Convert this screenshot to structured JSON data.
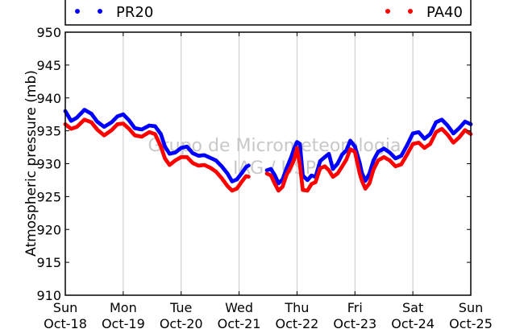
{
  "chart_data": {
    "type": "scatter",
    "title": "",
    "xlabel": "",
    "ylabel": "Atmospheric pressure (mb)",
    "ylim": [
      910,
      950
    ],
    "y_ticks": [
      910,
      915,
      920,
      925,
      930,
      935,
      940,
      945,
      950
    ],
    "xlim": [
      0,
      7
    ],
    "x_unit": "days",
    "x_ticks": [
      {
        "day": "Sun",
        "date": "Oct-18"
      },
      {
        "day": "Mon",
        "date": "Oct-19"
      },
      {
        "day": "Tue",
        "date": "Oct-20"
      },
      {
        "day": "Wed",
        "date": "Oct-21"
      },
      {
        "day": "Thu",
        "date": "Oct-22"
      },
      {
        "day": "Fri",
        "date": "Oct-23"
      },
      {
        "day": "Sat",
        "date": "Oct-24"
      },
      {
        "day": "Sun",
        "date": "Oct-25"
      }
    ],
    "grid": "vertical",
    "legend_placement": "top",
    "watermark": [
      "Grupo de Micrometeorologia",
      "IAG / USP"
    ],
    "series": [
      {
        "name": "PR20",
        "color": "#0000ff",
        "points": [
          [
            0.0,
            938.0
          ],
          [
            0.1,
            936.5
          ],
          [
            0.2,
            937.0
          ],
          [
            0.33,
            938.2
          ],
          [
            0.45,
            937.6
          ],
          [
            0.55,
            936.4
          ],
          [
            0.67,
            935.6
          ],
          [
            0.8,
            936.3
          ],
          [
            0.9,
            937.2
          ],
          [
            1.0,
            937.5
          ],
          [
            1.1,
            936.6
          ],
          [
            1.2,
            935.4
          ],
          [
            1.32,
            935.2
          ],
          [
            1.45,
            935.8
          ],
          [
            1.55,
            935.7
          ],
          [
            1.65,
            934.5
          ],
          [
            1.72,
            932.6
          ],
          [
            1.8,
            931.5
          ],
          [
            1.9,
            931.7
          ],
          [
            2.0,
            932.4
          ],
          [
            2.1,
            932.6
          ],
          [
            2.2,
            931.6
          ],
          [
            2.3,
            931.2
          ],
          [
            2.4,
            931.3
          ],
          [
            2.5,
            930.9
          ],
          [
            2.6,
            930.5
          ],
          [
            2.7,
            929.6
          ],
          [
            2.8,
            928.5
          ],
          [
            2.88,
            927.3
          ],
          [
            2.96,
            927.6
          ],
          [
            3.05,
            928.6
          ],
          [
            3.12,
            929.5
          ],
          [
            3.18,
            929.8
          ],
          [
            null,
            null
          ],
          [
            3.48,
            929.0
          ],
          [
            3.55,
            929.2
          ],
          [
            3.62,
            928.2
          ],
          [
            3.68,
            927.0
          ],
          [
            3.75,
            927.6
          ],
          [
            3.82,
            929.3
          ],
          [
            3.9,
            931.0
          ],
          [
            3.95,
            932.3
          ],
          [
            4.0,
            933.3
          ],
          [
            4.05,
            933.0
          ],
          [
            4.1,
            928.2
          ],
          [
            4.18,
            927.5
          ],
          [
            4.25,
            928.2
          ],
          [
            4.32,
            928.0
          ],
          [
            4.4,
            930.4
          ],
          [
            4.48,
            931.0
          ],
          [
            4.55,
            931.5
          ],
          [
            4.62,
            929.2
          ],
          [
            4.7,
            930.0
          ],
          [
            4.78,
            931.4
          ],
          [
            4.85,
            932.0
          ],
          [
            4.92,
            933.5
          ],
          [
            5.0,
            932.6
          ],
          [
            5.08,
            930.2
          ],
          [
            5.12,
            928.6
          ],
          [
            5.18,
            927.4
          ],
          [
            5.25,
            928.5
          ],
          [
            5.32,
            930.5
          ],
          [
            5.4,
            931.8
          ],
          [
            5.5,
            932.3
          ],
          [
            5.6,
            931.7
          ],
          [
            5.7,
            930.8
          ],
          [
            5.8,
            931.2
          ],
          [
            5.9,
            932.8
          ],
          [
            6.0,
            934.6
          ],
          [
            6.1,
            934.8
          ],
          [
            6.2,
            933.8
          ],
          [
            6.3,
            934.5
          ],
          [
            6.4,
            936.3
          ],
          [
            6.5,
            936.7
          ],
          [
            6.6,
            935.8
          ],
          [
            6.7,
            934.6
          ],
          [
            6.8,
            935.4
          ],
          [
            6.9,
            936.4
          ],
          [
            7.0,
            936.0
          ]
        ]
      },
      {
        "name": "PA40",
        "color": "#ff0000",
        "points": [
          [
            0.0,
            936.0
          ],
          [
            0.1,
            935.3
          ],
          [
            0.2,
            935.6
          ],
          [
            0.33,
            936.7
          ],
          [
            0.45,
            936.3
          ],
          [
            0.55,
            935.2
          ],
          [
            0.67,
            934.3
          ],
          [
            0.8,
            935.1
          ],
          [
            0.9,
            936.0
          ],
          [
            1.0,
            936.1
          ],
          [
            1.1,
            935.3
          ],
          [
            1.2,
            934.3
          ],
          [
            1.32,
            934.1
          ],
          [
            1.45,
            934.8
          ],
          [
            1.55,
            934.5
          ],
          [
            1.65,
            932.6
          ],
          [
            1.72,
            930.8
          ],
          [
            1.8,
            929.8
          ],
          [
            1.9,
            930.5
          ],
          [
            2.0,
            931.0
          ],
          [
            2.1,
            931.0
          ],
          [
            2.2,
            930.1
          ],
          [
            2.3,
            929.7
          ],
          [
            2.4,
            929.8
          ],
          [
            2.5,
            929.4
          ],
          [
            2.6,
            928.8
          ],
          [
            2.7,
            927.8
          ],
          [
            2.8,
            926.6
          ],
          [
            2.88,
            925.9
          ],
          [
            2.96,
            926.2
          ],
          [
            3.05,
            927.3
          ],
          [
            3.12,
            928.1
          ],
          [
            3.18,
            928.0
          ],
          [
            null,
            null
          ],
          [
            3.48,
            928.5
          ],
          [
            3.55,
            928.2
          ],
          [
            3.62,
            926.9
          ],
          [
            3.68,
            925.9
          ],
          [
            3.75,
            926.5
          ],
          [
            3.82,
            928.3
          ],
          [
            3.9,
            929.6
          ],
          [
            3.95,
            930.6
          ],
          [
            4.0,
            932.4
          ],
          [
            4.05,
            929.8
          ],
          [
            4.1,
            926.0
          ],
          [
            4.18,
            925.9
          ],
          [
            4.25,
            926.9
          ],
          [
            4.32,
            927.2
          ],
          [
            4.4,
            929.3
          ],
          [
            4.48,
            929.6
          ],
          [
            4.55,
            929.0
          ],
          [
            4.62,
            928.0
          ],
          [
            4.7,
            928.5
          ],
          [
            4.78,
            929.6
          ],
          [
            4.85,
            930.6
          ],
          [
            4.92,
            932.2
          ],
          [
            5.0,
            931.8
          ],
          [
            5.08,
            928.6
          ],
          [
            5.12,
            927.4
          ],
          [
            5.18,
            926.2
          ],
          [
            5.25,
            927.0
          ],
          [
            5.32,
            929.1
          ],
          [
            5.4,
            930.5
          ],
          [
            5.5,
            931.0
          ],
          [
            5.6,
            930.5
          ],
          [
            5.7,
            929.6
          ],
          [
            5.8,
            929.9
          ],
          [
            5.9,
            931.4
          ],
          [
            6.0,
            933.0
          ],
          [
            6.1,
            933.2
          ],
          [
            6.2,
            932.4
          ],
          [
            6.3,
            933.0
          ],
          [
            6.4,
            934.8
          ],
          [
            6.5,
            935.3
          ],
          [
            6.6,
            934.4
          ],
          [
            6.7,
            933.2
          ],
          [
            6.8,
            934.0
          ],
          [
            6.9,
            935.1
          ],
          [
            7.0,
            934.5
          ]
        ]
      }
    ]
  }
}
